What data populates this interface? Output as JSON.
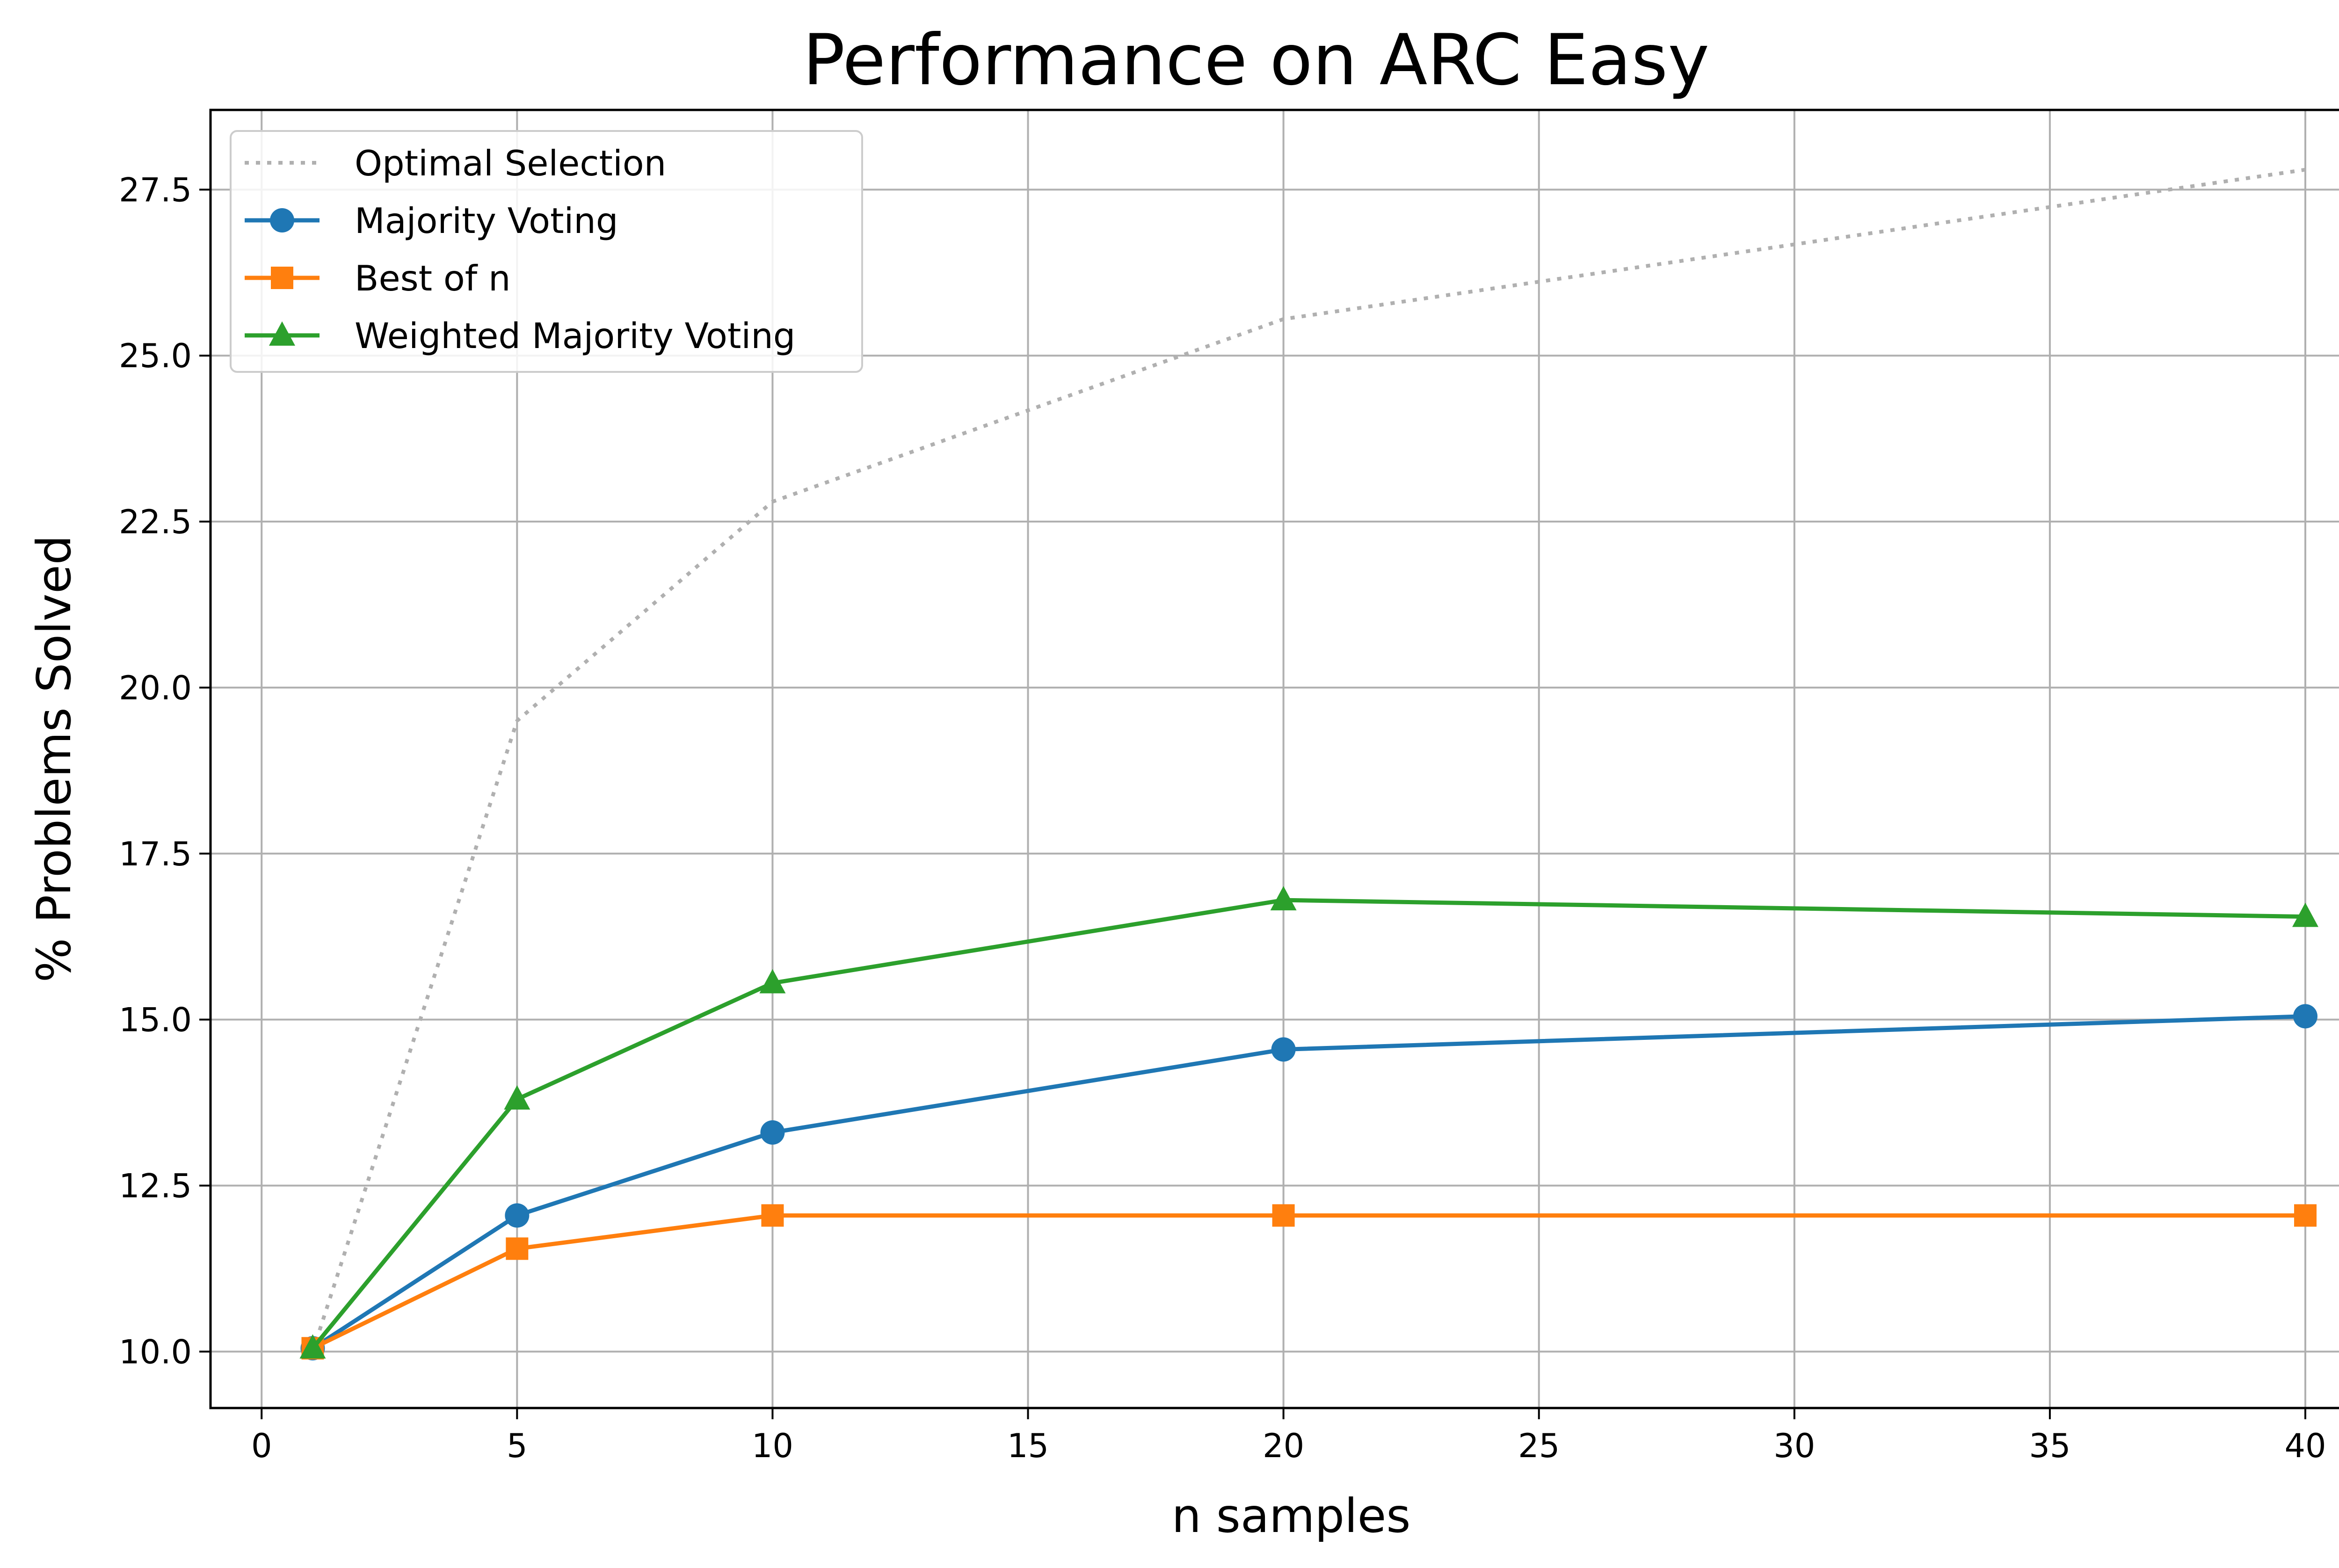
{
  "chart_data": {
    "type": "line",
    "title": "Performance on ARC Easy",
    "xlabel": "n samples",
    "ylabel": "% Problems Solved",
    "xlim": [
      -1,
      41.3
    ],
    "ylim": [
      9.15,
      28.7
    ],
    "xticks": [
      0,
      5,
      10,
      15,
      20,
      25,
      30,
      35,
      40
    ],
    "xtick_labels": [
      "0",
      "5",
      "10",
      "15",
      "20",
      "25",
      "30",
      "35",
      "40"
    ],
    "yticks": [
      10.0,
      12.5,
      15.0,
      17.5,
      20.0,
      22.5,
      25.0,
      27.5
    ],
    "ytick_labels": [
      "10.0",
      "12.5",
      "15.0",
      "17.5",
      "20.0",
      "22.5",
      "25.0",
      "27.5"
    ],
    "grid": true,
    "legend_position": "top-left",
    "x": [
      1,
      5,
      10,
      20,
      40
    ],
    "series": [
      {
        "name": "Optimal Selection",
        "values": [
          10.0,
          19.5,
          22.8,
          25.55,
          27.8
        ],
        "color": "#b0b0b0",
        "style": "dotted",
        "marker": "none"
      },
      {
        "name": "Majority Voting",
        "values": [
          10.05,
          12.05,
          13.3,
          14.55,
          15.05
        ],
        "color": "#1f77b4",
        "style": "solid",
        "marker": "circle"
      },
      {
        "name": "Best of n",
        "values": [
          10.05,
          11.55,
          12.05,
          12.05,
          12.05
        ],
        "color": "#ff7f0e",
        "style": "solid",
        "marker": "square"
      },
      {
        "name": "Weighted Majority Voting",
        "values": [
          10.05,
          13.8,
          15.55,
          16.8,
          16.55
        ],
        "color": "#2ca02c",
        "style": "solid",
        "marker": "triangle"
      }
    ]
  }
}
